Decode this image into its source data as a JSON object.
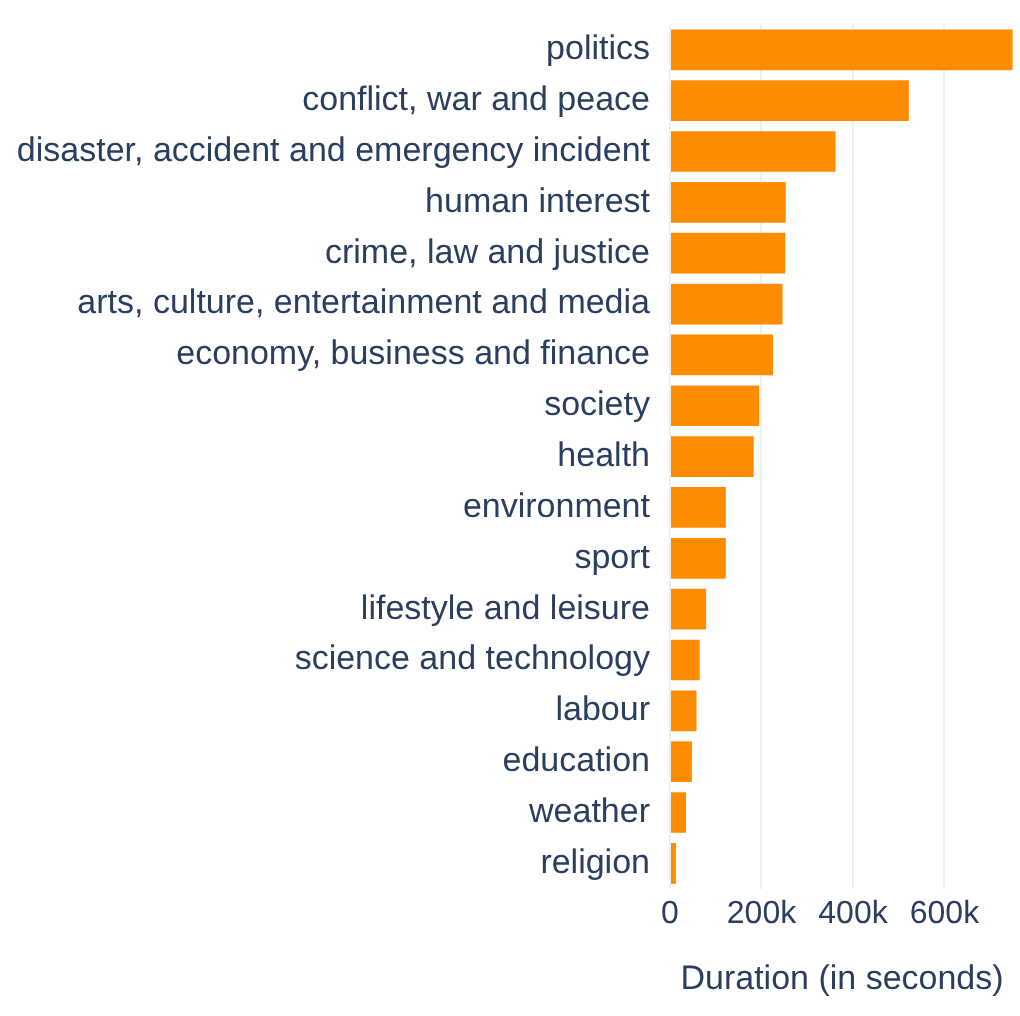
{
  "chart_data": {
    "type": "bar",
    "orientation": "horizontal",
    "xlabel": "Duration (in seconds)",
    "categories": [
      "politics",
      "conflict, war and peace",
      "disaster, accident and emergency incident",
      "human interest",
      "crime, law and justice",
      "arts, culture, entertainment and media",
      "economy, business and finance",
      "society",
      "health",
      "environment",
      "sport",
      "lifestyle and leisure",
      "science and technology",
      "labour",
      "education",
      "weather",
      "religion"
    ],
    "values": [
      749000,
      522000,
      362000,
      253000,
      252000,
      246000,
      225000,
      195000,
      183000,
      122000,
      122000,
      79000,
      65000,
      58000,
      48000,
      35000,
      13000
    ],
    "color": "#ff8c00",
    "xlim": [
      0,
      752000
    ],
    "xticks": [
      0,
      {
        "value": 200000,
        "label": "200k"
      },
      {
        "value": 400000,
        "label": "400k"
      },
      {
        "value": 600000,
        "label": "600k"
      }
    ],
    "grid": "x",
    "legend": false
  }
}
